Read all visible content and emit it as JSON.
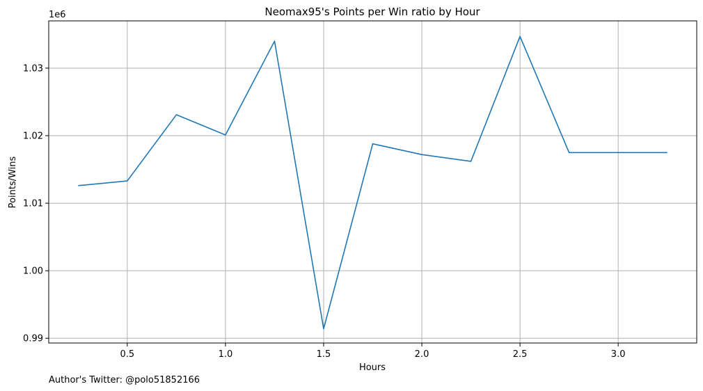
{
  "chart_data": {
    "type": "line",
    "title": "Neomax95's Points per Win ratio by Hour",
    "xlabel": "Hours",
    "ylabel": "Points/Wins",
    "y_offset_label": "1e6",
    "footer": "Author's Twitter: @polo51852166",
    "xlim": [
      0.1,
      3.4
    ],
    "ylim": [
      0.9893,
      1.037
    ],
    "x_ticks": [
      0.5,
      1.0,
      1.5,
      2.0,
      2.5,
      3.0
    ],
    "x_tick_labels": [
      "0.5",
      "1.0",
      "1.5",
      "2.0",
      "2.5",
      "3.0"
    ],
    "y_ticks": [
      0.99,
      1.0,
      1.01,
      1.02,
      1.03
    ],
    "y_tick_labels": [
      "0.99",
      "1.00",
      "1.01",
      "1.02",
      "1.03"
    ],
    "grid": true,
    "series": [
      {
        "color": "#1f77b4",
        "x": [
          0.25,
          0.5,
          0.75,
          1.0,
          1.25,
          1.5,
          1.75,
          2.0,
          2.25,
          2.5,
          2.75,
          3.0,
          3.25
        ],
        "y": [
          1.0126,
          1.0133,
          1.0231,
          1.0201,
          1.034,
          0.9914,
          1.0188,
          1.0172,
          1.0162,
          1.0347,
          1.0175,
          1.0175,
          1.0175
        ]
      }
    ]
  }
}
